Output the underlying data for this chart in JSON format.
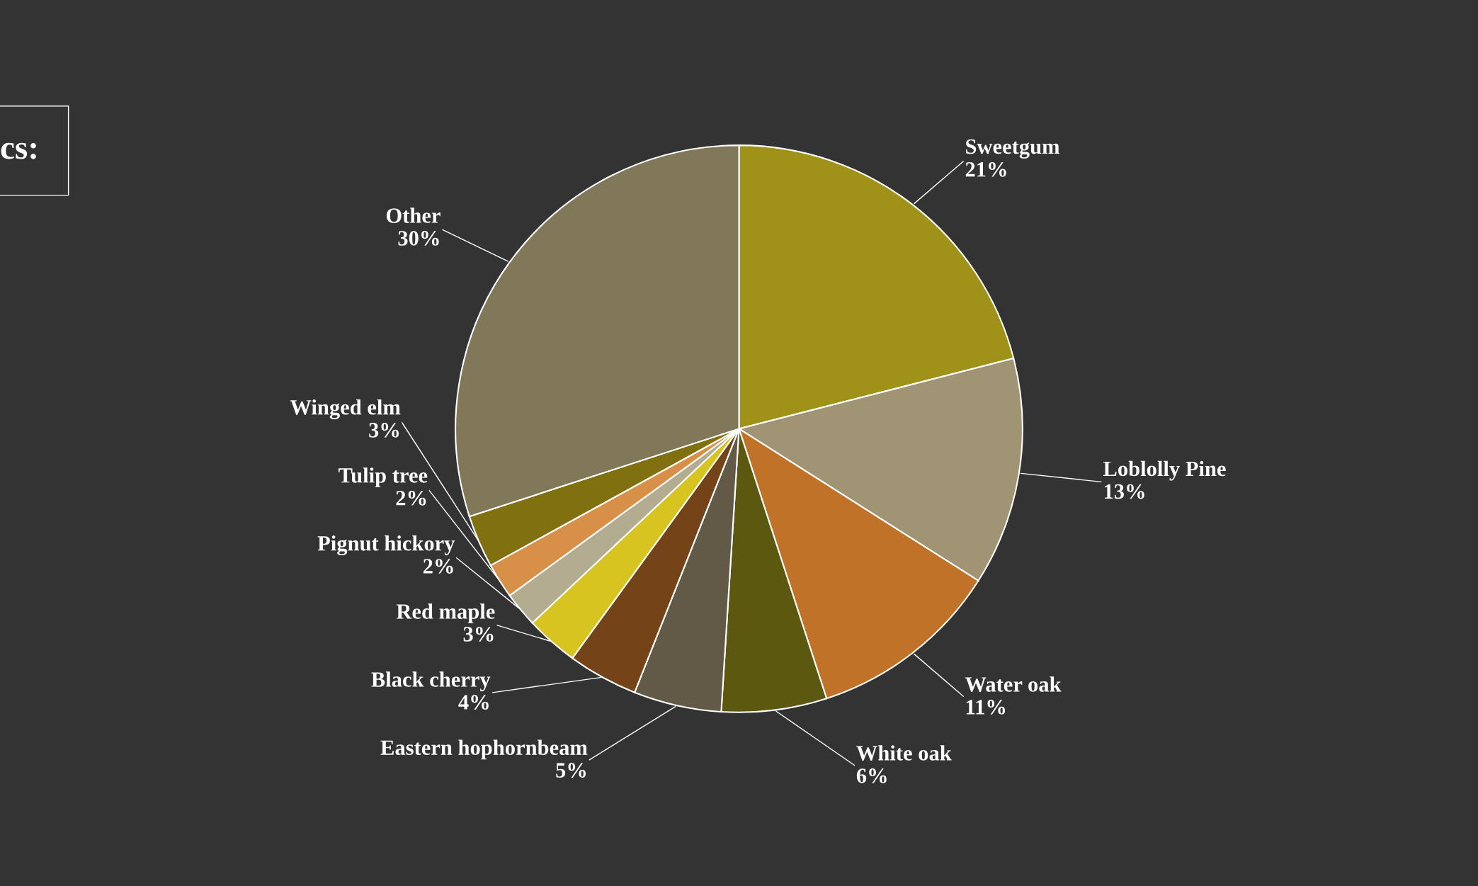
{
  "chart_data": {
    "type": "pie",
    "categories": [
      "Sweetgum",
      "Loblolly Pine",
      "Water oak",
      "White oak",
      "Eastern hophornbeam",
      "Black cherry",
      "Red maple",
      "Pignut hickory",
      "Tulip tree",
      "Winged elm",
      "Other"
    ],
    "values": [
      21,
      13,
      11,
      6,
      5,
      4,
      3,
      2,
      2,
      3,
      30
    ],
    "value_labels": [
      "21%",
      "13%",
      "11%",
      "6%",
      "5%",
      "4%",
      "3%",
      "2%",
      "2%",
      "3%",
      "30%"
    ],
    "colors": [
      "#a09218",
      "#a09474",
      "#c07328",
      "#5c5810",
      "#625a46",
      "#744418",
      "#d8c420",
      "#b4ac90",
      "#d89048",
      "#807010",
      "#807858"
    ],
    "annotations": [
      "cs:"
    ],
    "legend": false
  }
}
